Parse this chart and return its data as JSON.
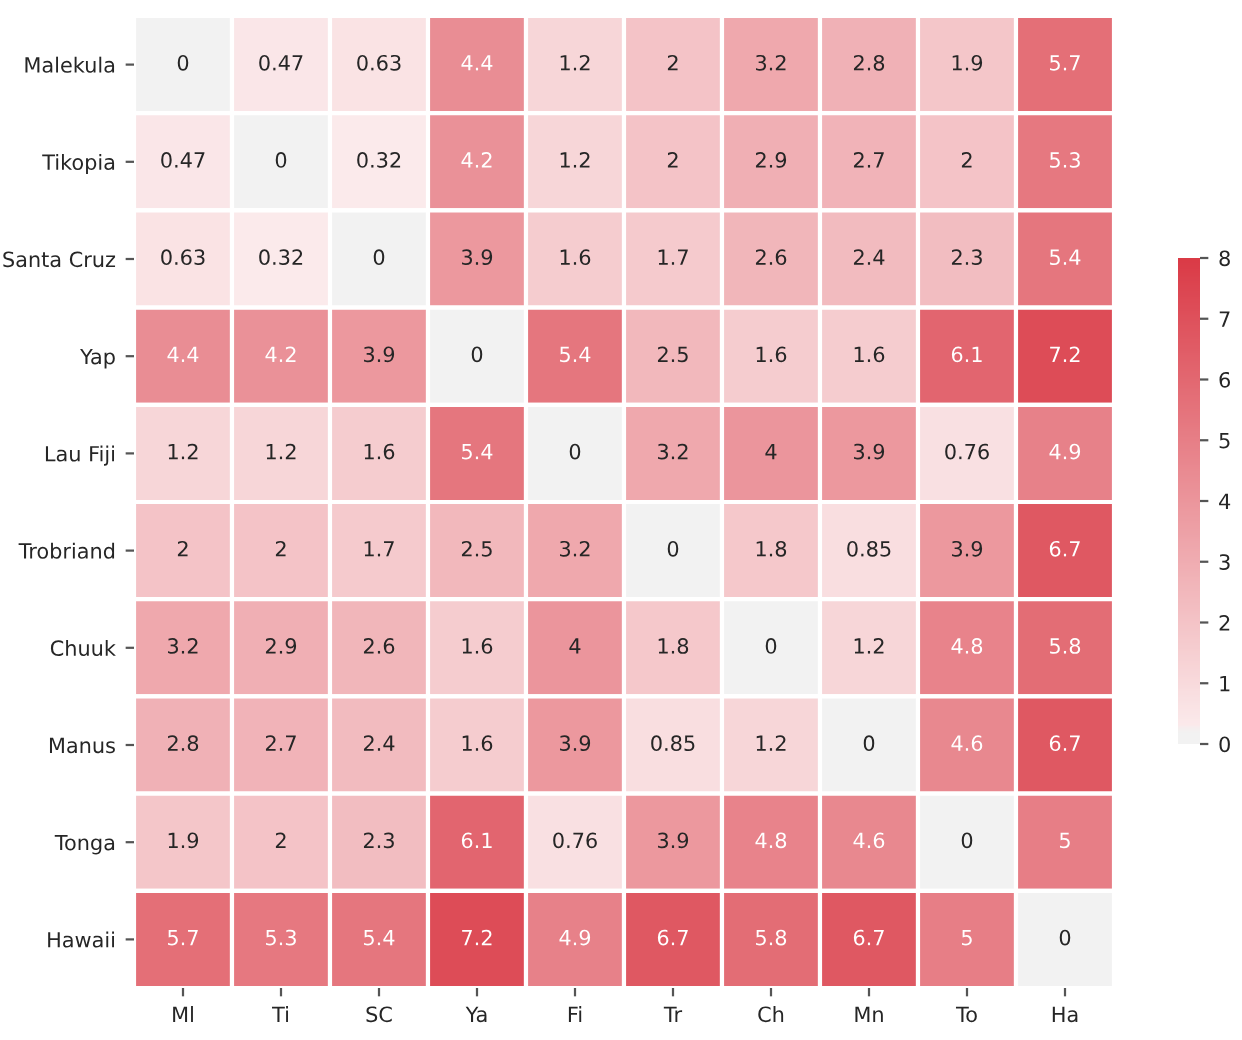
{
  "chart_data": {
    "type": "heatmap",
    "categories": [
      "Ml",
      "Ti",
      "SC",
      "Ya",
      "Fi",
      "Tr",
      "Ch",
      "Mn",
      "To",
      "Ha"
    ],
    "y_categories": [
      "Malekula",
      "Tikopia",
      "Santa Cruz",
      "Yap",
      "Lau Fiji",
      "Trobriand",
      "Chuuk",
      "Manus",
      "Tonga",
      "Hawaii"
    ],
    "cells": [
      [
        0,
        0.47,
        0.63,
        4.4,
        1.2,
        2,
        3.2,
        2.8,
        1.9,
        5.7
      ],
      [
        0.47,
        0,
        0.32,
        4.2,
        1.2,
        2,
        2.9,
        2.7,
        2,
        5.3
      ],
      [
        0.63,
        0.32,
        0,
        3.9,
        1.6,
        1.7,
        2.6,
        2.4,
        2.3,
        5.4
      ],
      [
        4.4,
        4.2,
        3.9,
        0,
        5.4,
        2.5,
        1.6,
        1.6,
        6.1,
        7.2
      ],
      [
        1.2,
        1.2,
        1.6,
        5.4,
        0,
        3.2,
        4,
        3.9,
        0.76,
        4.9
      ],
      [
        2,
        2,
        1.7,
        2.5,
        3.2,
        0,
        1.8,
        0.85,
        3.9,
        6.7
      ],
      [
        3.2,
        2.9,
        2.6,
        1.6,
        4,
        1.8,
        0,
        1.2,
        4.8,
        5.8
      ],
      [
        2.8,
        2.7,
        2.4,
        1.6,
        3.9,
        0.85,
        1.2,
        0,
        4.6,
        6.7
      ],
      [
        1.9,
        2,
        2.3,
        6.1,
        0.76,
        3.9,
        4.8,
        4.6,
        0,
        5
      ],
      [
        5.7,
        5.3,
        5.4,
        7.2,
        4.9,
        6.7,
        5.8,
        6.7,
        5,
        0
      ]
    ],
    "clim": [
      0,
      8
    ],
    "cticks": [
      0,
      1,
      2,
      3,
      4,
      5,
      6,
      7,
      8
    ],
    "data_labels": true
  }
}
